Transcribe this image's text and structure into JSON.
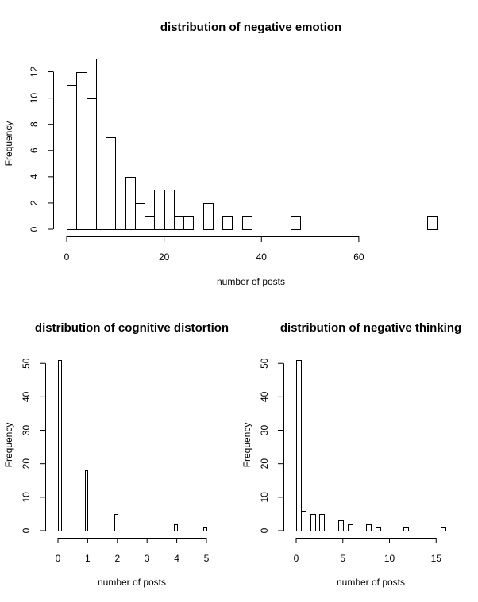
{
  "chart_data": [
    {
      "type": "bar",
      "title": "distribution of negative emotion",
      "xlabel": "number of posts",
      "ylabel": "Frequency",
      "bin_width": 2,
      "bins_start": [
        0,
        2,
        4,
        6,
        8,
        10,
        12,
        14,
        16,
        18,
        20,
        22,
        24,
        26,
        28,
        30,
        32,
        34,
        36,
        38,
        40,
        42,
        44,
        46,
        48,
        50,
        52,
        54,
        56,
        58,
        60,
        62,
        64,
        66,
        68,
        70,
        72,
        74
      ],
      "values": [
        11,
        12,
        10,
        13,
        7,
        3,
        4,
        2,
        1,
        3,
        3,
        1,
        1,
        0,
        2,
        0,
        1,
        0,
        1,
        0,
        0,
        0,
        0,
        1,
        0,
        0,
        0,
        0,
        0,
        0,
        0,
        0,
        0,
        0,
        0,
        0,
        0,
        1
      ],
      "xlim": [
        0,
        76
      ],
      "ylim": [
        0,
        13
      ],
      "x_ticks": [
        "0",
        "20",
        "40",
        "60"
      ],
      "y_ticks": [
        "0",
        "2",
        "4",
        "6",
        "8",
        "10",
        "12"
      ]
    },
    {
      "type": "bar",
      "title": "distribution of cognitive distortion",
      "xlabel": "number of posts",
      "ylabel": "Frequency",
      "bin_width": 0.1,
      "bins_start": [
        0,
        0.1,
        0.2,
        0.3,
        0.4,
        0.5,
        0.6,
        0.7,
        0.8,
        0.9,
        1.0,
        1.1,
        1.2,
        1.3,
        1.4,
        1.5,
        1.6,
        1.7,
        1.8,
        1.9,
        2.0,
        2.1,
        2.2,
        2.3,
        2.4,
        2.5,
        2.6,
        2.7,
        2.8,
        2.9,
        3.0,
        3.1,
        3.2,
        3.3,
        3.4,
        3.5,
        3.6,
        3.7,
        3.8,
        3.9,
        4.0,
        4.1,
        4.2,
        4.3,
        4.4,
        4.5,
        4.6,
        4.7,
        4.8,
        4.9
      ],
      "values": [
        51,
        0,
        0,
        0,
        0,
        0,
        0,
        0,
        0,
        18,
        0,
        0,
        0,
        0,
        0,
        0,
        0,
        0,
        0,
        5,
        0,
        0,
        0,
        0,
        0,
        0,
        0,
        0,
        0,
        0,
        0,
        0,
        0,
        0,
        0,
        0,
        0,
        0,
        0,
        2,
        0,
        0,
        0,
        0,
        0,
        0,
        0,
        0,
        0,
        1
      ],
      "xlim": [
        0,
        5
      ],
      "ylim": [
        0,
        51
      ],
      "x_ticks": [
        "0",
        "1",
        "2",
        "3",
        "4",
        "5"
      ],
      "y_ticks": [
        "0",
        "10",
        "20",
        "30",
        "40",
        "50"
      ]
    },
    {
      "type": "bar",
      "title": "distribution of negative thinking",
      "xlabel": "number of posts",
      "ylabel": "Frequency",
      "bin_width": 0.5,
      "bins_start": [
        0,
        0.5,
        1,
        1.5,
        2,
        2.5,
        3,
        3.5,
        4,
        4.5,
        5,
        5.5,
        6,
        6.5,
        7,
        7.5,
        8,
        8.5,
        9,
        9.5,
        10,
        10.5,
        11,
        11.5,
        12,
        12.5,
        13,
        13.5,
        14,
        14.5,
        15,
        15.5
      ],
      "values": [
        51,
        6,
        0,
        5,
        0,
        5,
        0,
        0,
        0,
        3,
        0,
        2,
        0,
        0,
        0,
        2,
        0,
        1,
        0,
        0,
        0,
        0,
        0,
        1,
        0,
        0,
        0,
        0,
        0,
        0,
        0,
        1
      ],
      "xlim": [
        0,
        16
      ],
      "ylim": [
        0,
        51
      ],
      "x_ticks": [
        "0",
        "5",
        "10",
        "15"
      ],
      "y_ticks": [
        "0",
        "10",
        "20",
        "30",
        "40",
        "50"
      ]
    }
  ]
}
